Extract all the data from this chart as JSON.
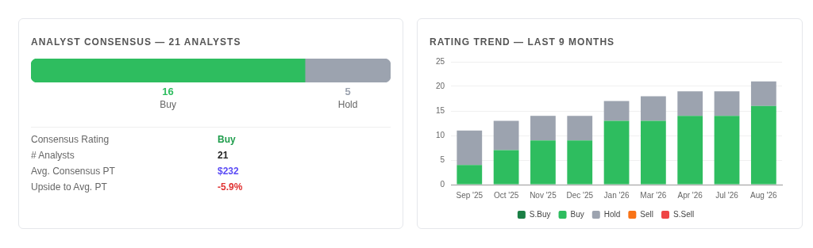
{
  "chart_data": [
    {
      "type": "bar",
      "title": "ANALYST CONSENSUS — 21 ANALYSTS",
      "orientation": "horizontal",
      "stacked": true,
      "categories": [
        null
      ],
      "data_labels": true,
      "series": [
        {
          "name": "Buy",
          "color": "#2ebd5f",
          "values": [
            16
          ]
        },
        {
          "name": "Hold",
          "color": "#9ca3af",
          "values": [
            5
          ]
        }
      ],
      "annotations": [
        "Consensus Rating",
        "Buy",
        "# Analysts",
        "21",
        "Avg. Consensus PT",
        "$232",
        "Upside to Avg. PT",
        "-5.9%"
      ]
    },
    {
      "type": "bar",
      "title": "RATING TREND — LAST 9 MONTHS",
      "stacked": true,
      "categories": [
        "Sep '25",
        "Oct '25",
        "Nov '25",
        "Dec '25",
        "Jan '26",
        "Mar '26",
        "Apr '26",
        "Jul '26",
        "Aug '26"
      ],
      "ylim": [
        0,
        25
      ],
      "yticks": [
        0,
        5,
        10,
        15,
        20,
        25
      ],
      "grid": "y",
      "legend": "bottom",
      "series": [
        {
          "name": "S.Buy",
          "color": "#1a7f45",
          "values": [
            0,
            0,
            0,
            0,
            0,
            0,
            0,
            0,
            0
          ]
        },
        {
          "name": "Buy",
          "color": "#2ebd5f",
          "values": [
            4,
            7,
            9,
            9,
            13,
            13,
            14,
            14,
            16
          ]
        },
        {
          "name": "Hold",
          "color": "#9ca3af",
          "values": [
            7,
            6,
            5,
            5,
            4,
            5,
            5,
            5,
            5
          ]
        },
        {
          "name": "Sell",
          "color": "#f97316",
          "values": [
            0,
            0,
            0,
            0,
            0,
            0,
            0,
            0,
            0
          ]
        },
        {
          "name": "S.Sell",
          "color": "#ef4444",
          "values": [
            0,
            0,
            0,
            0,
            0,
            0,
            0,
            0,
            0
          ]
        }
      ]
    }
  ]
}
